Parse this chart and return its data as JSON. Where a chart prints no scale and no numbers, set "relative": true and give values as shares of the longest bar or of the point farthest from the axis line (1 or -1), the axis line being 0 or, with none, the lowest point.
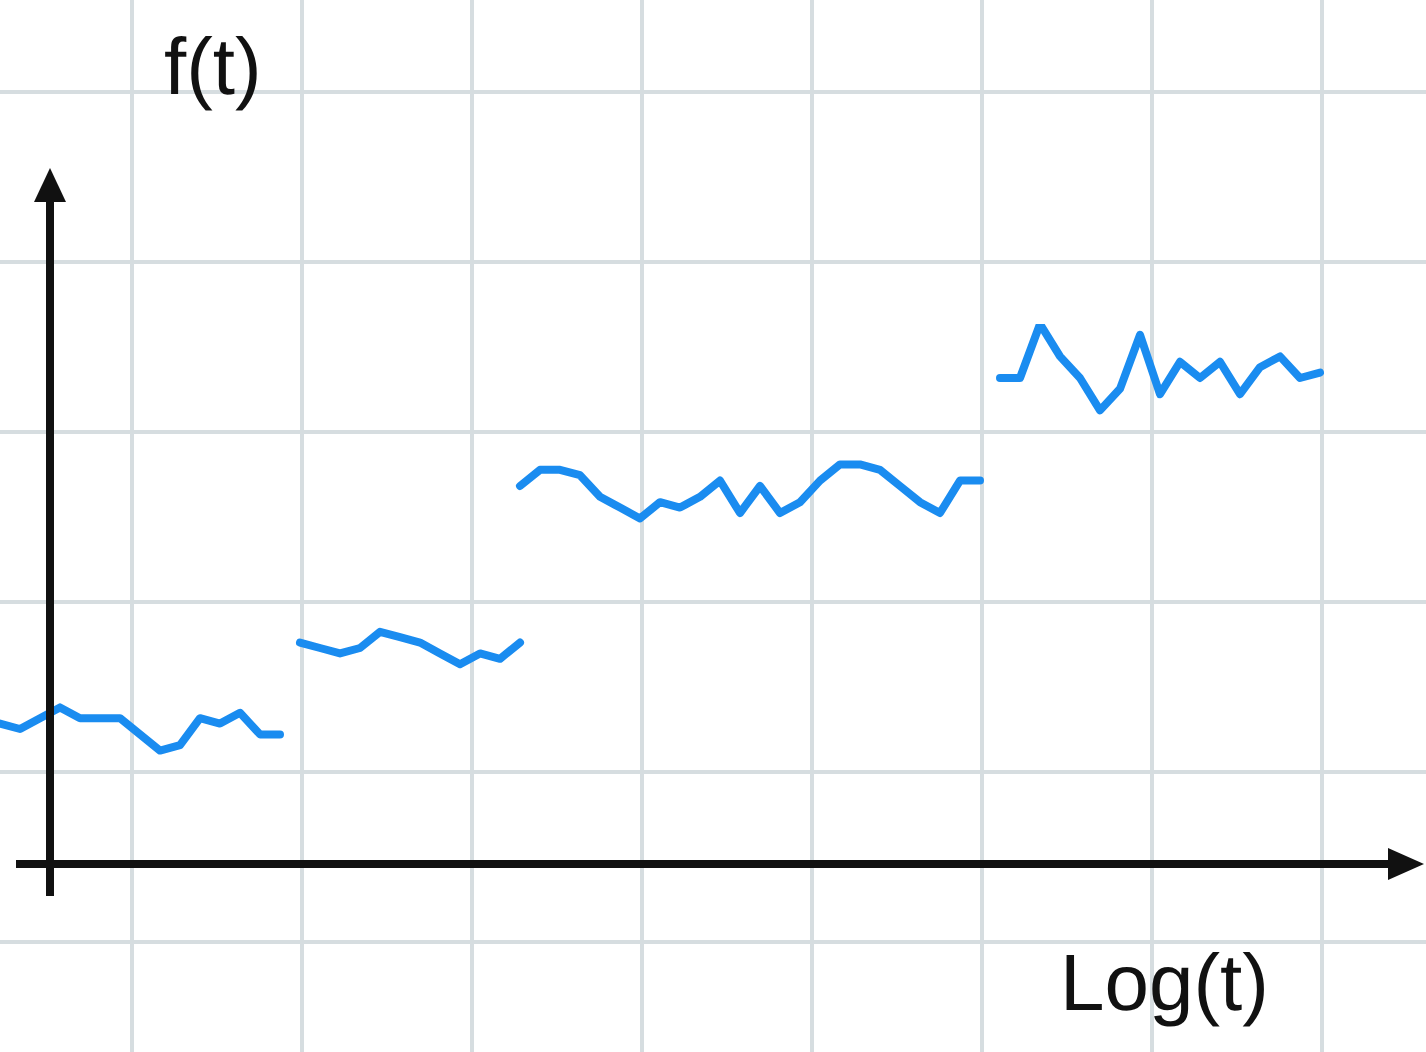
{
  "chart_data": {
    "type": "line",
    "relative": true,
    "xlabel": "Log(t)",
    "ylabel": "f(t)",
    "legend": false,
    "categories": [
      null,
      null,
      null,
      null,
      null,
      null,
      null,
      null,
      null,
      null,
      null,
      null,
      null,
      null,
      null,
      null,
      null,
      null,
      null,
      null,
      null,
      null,
      null,
      null,
      null,
      null,
      null,
      null,
      null,
      null,
      null,
      null,
      null,
      null,
      null,
      null,
      null,
      null,
      null,
      null,
      null,
      null,
      null,
      null,
      null,
      null,
      null,
      null,
      null,
      null,
      null,
      null,
      null,
      null,
      null,
      null,
      null,
      null,
      null,
      null,
      null,
      null,
      null,
      null,
      null,
      null,
      null
    ],
    "series": [
      {
        "color": "#1a8cf0",
        "values": [
          0.26,
          0.25,
          0.27,
          0.29,
          0.27,
          0.27,
          0.27,
          0.24,
          0.21,
          0.22,
          0.27,
          0.26,
          0.28,
          0.24,
          0.24,
          null,
          null,
          null,
          null,
          null,
          null,
          null,
          null,
          null,
          null,
          null,
          null,
          null,
          null,
          null,
          null,
          null,
          null,
          null,
          null,
          null,
          null,
          null,
          null,
          null,
          null,
          null,
          null,
          null,
          null,
          null,
          null,
          null,
          null,
          null,
          null,
          null,
          null,
          null,
          null,
          null,
          null,
          null,
          null,
          null,
          null,
          null,
          null,
          null,
          null,
          null,
          null
        ]
      },
      {
        "color": "#1a8cf0",
        "values": [
          null,
          null,
          null,
          null,
          null,
          null,
          null,
          null,
          null,
          null,
          null,
          null,
          null,
          null,
          null,
          0.41,
          0.4,
          0.39,
          0.4,
          0.43,
          0.42,
          0.41,
          0.39,
          0.37,
          0.39,
          0.38,
          0.41,
          null,
          null,
          null,
          null,
          null,
          null,
          null,
          null,
          null,
          null,
          null,
          null,
          null,
          null,
          null,
          null,
          null,
          null,
          null,
          null,
          null,
          null,
          null,
          null,
          null,
          null,
          null,
          null,
          null,
          null,
          null,
          null,
          null,
          null,
          null,
          null,
          null,
          null,
          null,
          null
        ]
      },
      {
        "color": "#1a8cf0",
        "values": [
          null,
          null,
          null,
          null,
          null,
          null,
          null,
          null,
          null,
          null,
          null,
          null,
          null,
          null,
          null,
          null,
          null,
          null,
          null,
          null,
          null,
          null,
          null,
          null,
          null,
          null,
          0.7,
          0.73,
          0.73,
          0.72,
          0.68,
          0.66,
          0.64,
          0.67,
          0.66,
          0.68,
          0.71,
          0.65,
          0.7,
          0.65,
          0.67,
          0.71,
          0.74,
          0.74,
          0.73,
          0.7,
          0.67,
          0.65,
          0.71,
          0.71,
          null,
          null,
          null,
          null,
          null,
          null,
          null,
          null,
          null,
          null,
          null,
          null,
          null,
          null,
          null,
          null,
          null
        ]
      },
      {
        "color": "#1a8cf0",
        "values": [
          null,
          null,
          null,
          null,
          null,
          null,
          null,
          null,
          null,
          null,
          null,
          null,
          null,
          null,
          null,
          null,
          null,
          null,
          null,
          null,
          null,
          null,
          null,
          null,
          null,
          null,
          null,
          null,
          null,
          null,
          null,
          null,
          null,
          null,
          null,
          null,
          null,
          null,
          null,
          null,
          null,
          null,
          null,
          null,
          null,
          null,
          null,
          null,
          null,
          null,
          0.9,
          0.9,
          1,
          0.94,
          0.9,
          0.84,
          0.88,
          0.98,
          0.87,
          0.93,
          0.9,
          0.93,
          0.87,
          0.92,
          0.94,
          0.9,
          0.91
        ]
      }
    ]
  }
}
